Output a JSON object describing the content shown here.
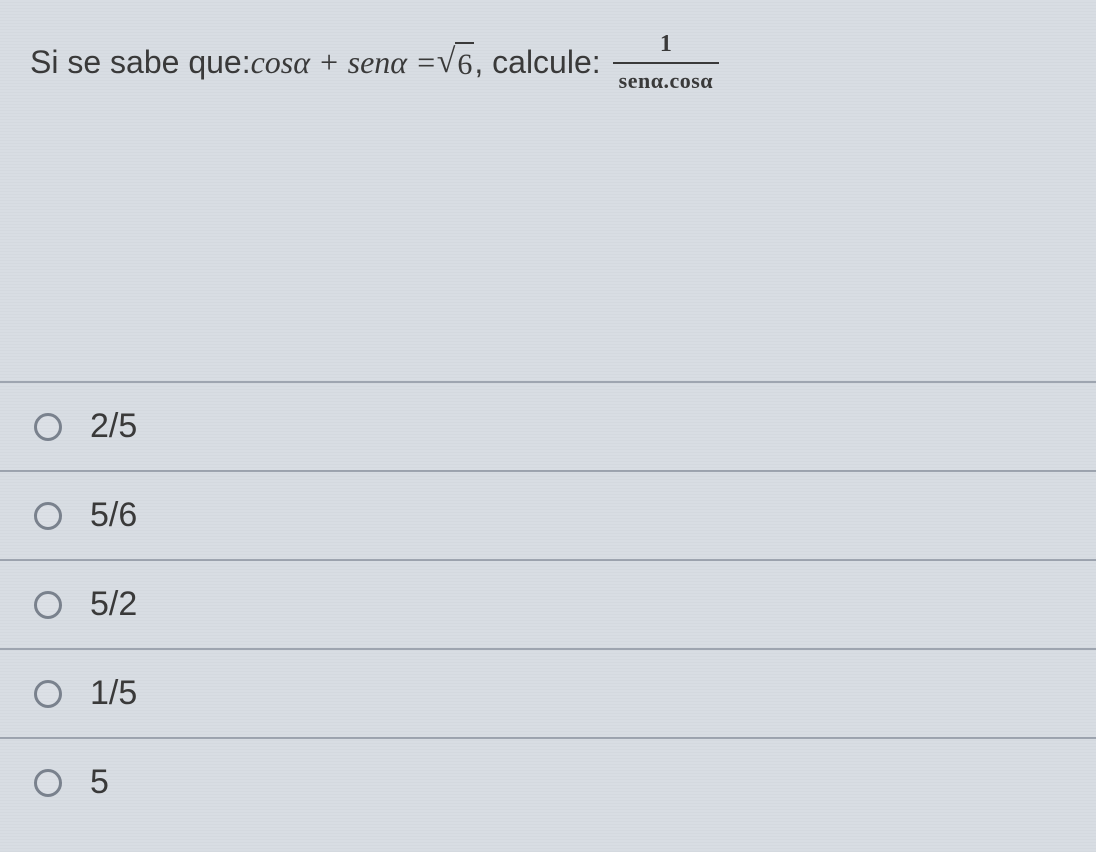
{
  "question": {
    "prefix": "Si se sabe que: ",
    "expr_left": "cosα + senα = ",
    "sqrt_value": "6",
    "mid_text": ", calcule: ",
    "fraction_numerator": "1",
    "fraction_denominator": "senα.cosα"
  },
  "options": [
    {
      "label": "2/5"
    },
    {
      "label": "5/6"
    },
    {
      "label": "5/2"
    },
    {
      "label": "1/5"
    },
    {
      "label": "5"
    }
  ],
  "styling": {
    "background_color": "#d8dde3",
    "text_color": "#3a3a3a",
    "divider_color": "#9ea5b0",
    "radio_border_color": "#7a828e",
    "question_fontsize": 32,
    "option_fontsize": 34
  }
}
